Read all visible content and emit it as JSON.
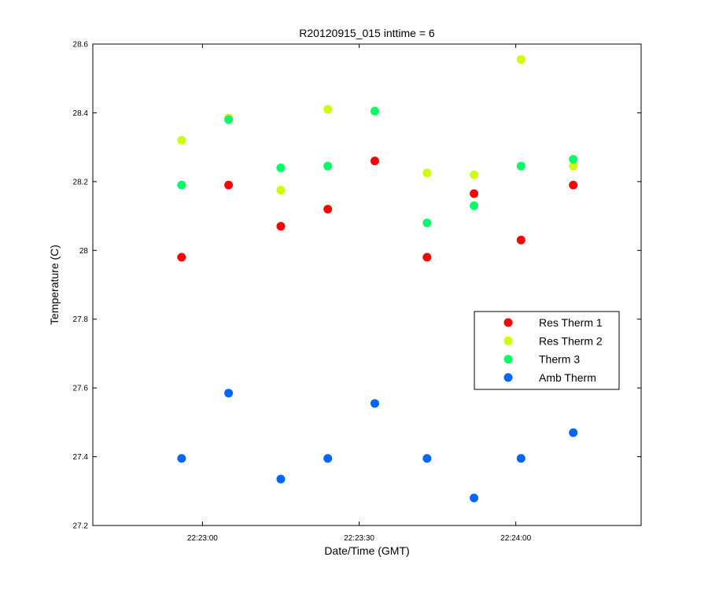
{
  "chart_data": {
    "type": "scatter",
    "title": "R20120915_015 inttime = 6",
    "xlabel": "Date/Time (GMT)",
    "ylabel": "Temperature (C)",
    "xlim": [
      "22:22:39",
      "22:24:24"
    ],
    "ylim": [
      27.2,
      28.6
    ],
    "x_ticks": [
      "22:23:00",
      "22:23:30",
      "22:24:00"
    ],
    "y_ticks": [
      "27.2",
      "27.4",
      "27.6",
      "27.8",
      "28",
      "28.2",
      "28.4",
      "28.6"
    ],
    "grid": false,
    "legend_position": "right",
    "series": [
      {
        "name": "Res Therm 1",
        "color": "#ff0000",
        "x": [
          "22:22:56",
          "22:23:05",
          "22:23:15",
          "22:23:24",
          "22:23:33",
          "22:23:43",
          "22:23:52",
          "22:24:01",
          "22:24:11"
        ],
        "y": [
          27.98,
          28.19,
          28.07,
          28.12,
          28.26,
          27.98,
          28.165,
          28.03,
          28.19
        ]
      },
      {
        "name": "Res Therm 2",
        "color": "#ccff00",
        "x": [
          "22:22:56",
          "22:23:05",
          "22:23:15",
          "22:23:24",
          "22:23:33",
          "22:23:43",
          "22:23:52",
          "22:24:01",
          "22:24:11"
        ],
        "y": [
          28.32,
          28.385,
          28.175,
          28.41,
          28.405,
          28.225,
          28.22,
          28.555,
          28.245
        ]
      },
      {
        "name": "Therm 3",
        "color": "#00ff66",
        "x": [
          "22:22:56",
          "22:23:05",
          "22:23:15",
          "22:23:24",
          "22:23:33",
          "22:23:43",
          "22:23:52",
          "22:24:01",
          "22:24:11"
        ],
        "y": [
          28.19,
          28.38,
          28.24,
          28.245,
          28.405,
          28.08,
          28.13,
          28.245,
          28.265
        ]
      },
      {
        "name": "Amb Therm",
        "color": "#0066ff",
        "x": [
          "22:22:56",
          "22:23:05",
          "22:23:15",
          "22:23:24",
          "22:23:33",
          "22:23:43",
          "22:23:52",
          "22:24:01",
          "22:24:11"
        ],
        "y": [
          27.395,
          27.585,
          27.335,
          27.395,
          27.555,
          27.395,
          27.28,
          27.395,
          27.47
        ]
      }
    ]
  }
}
